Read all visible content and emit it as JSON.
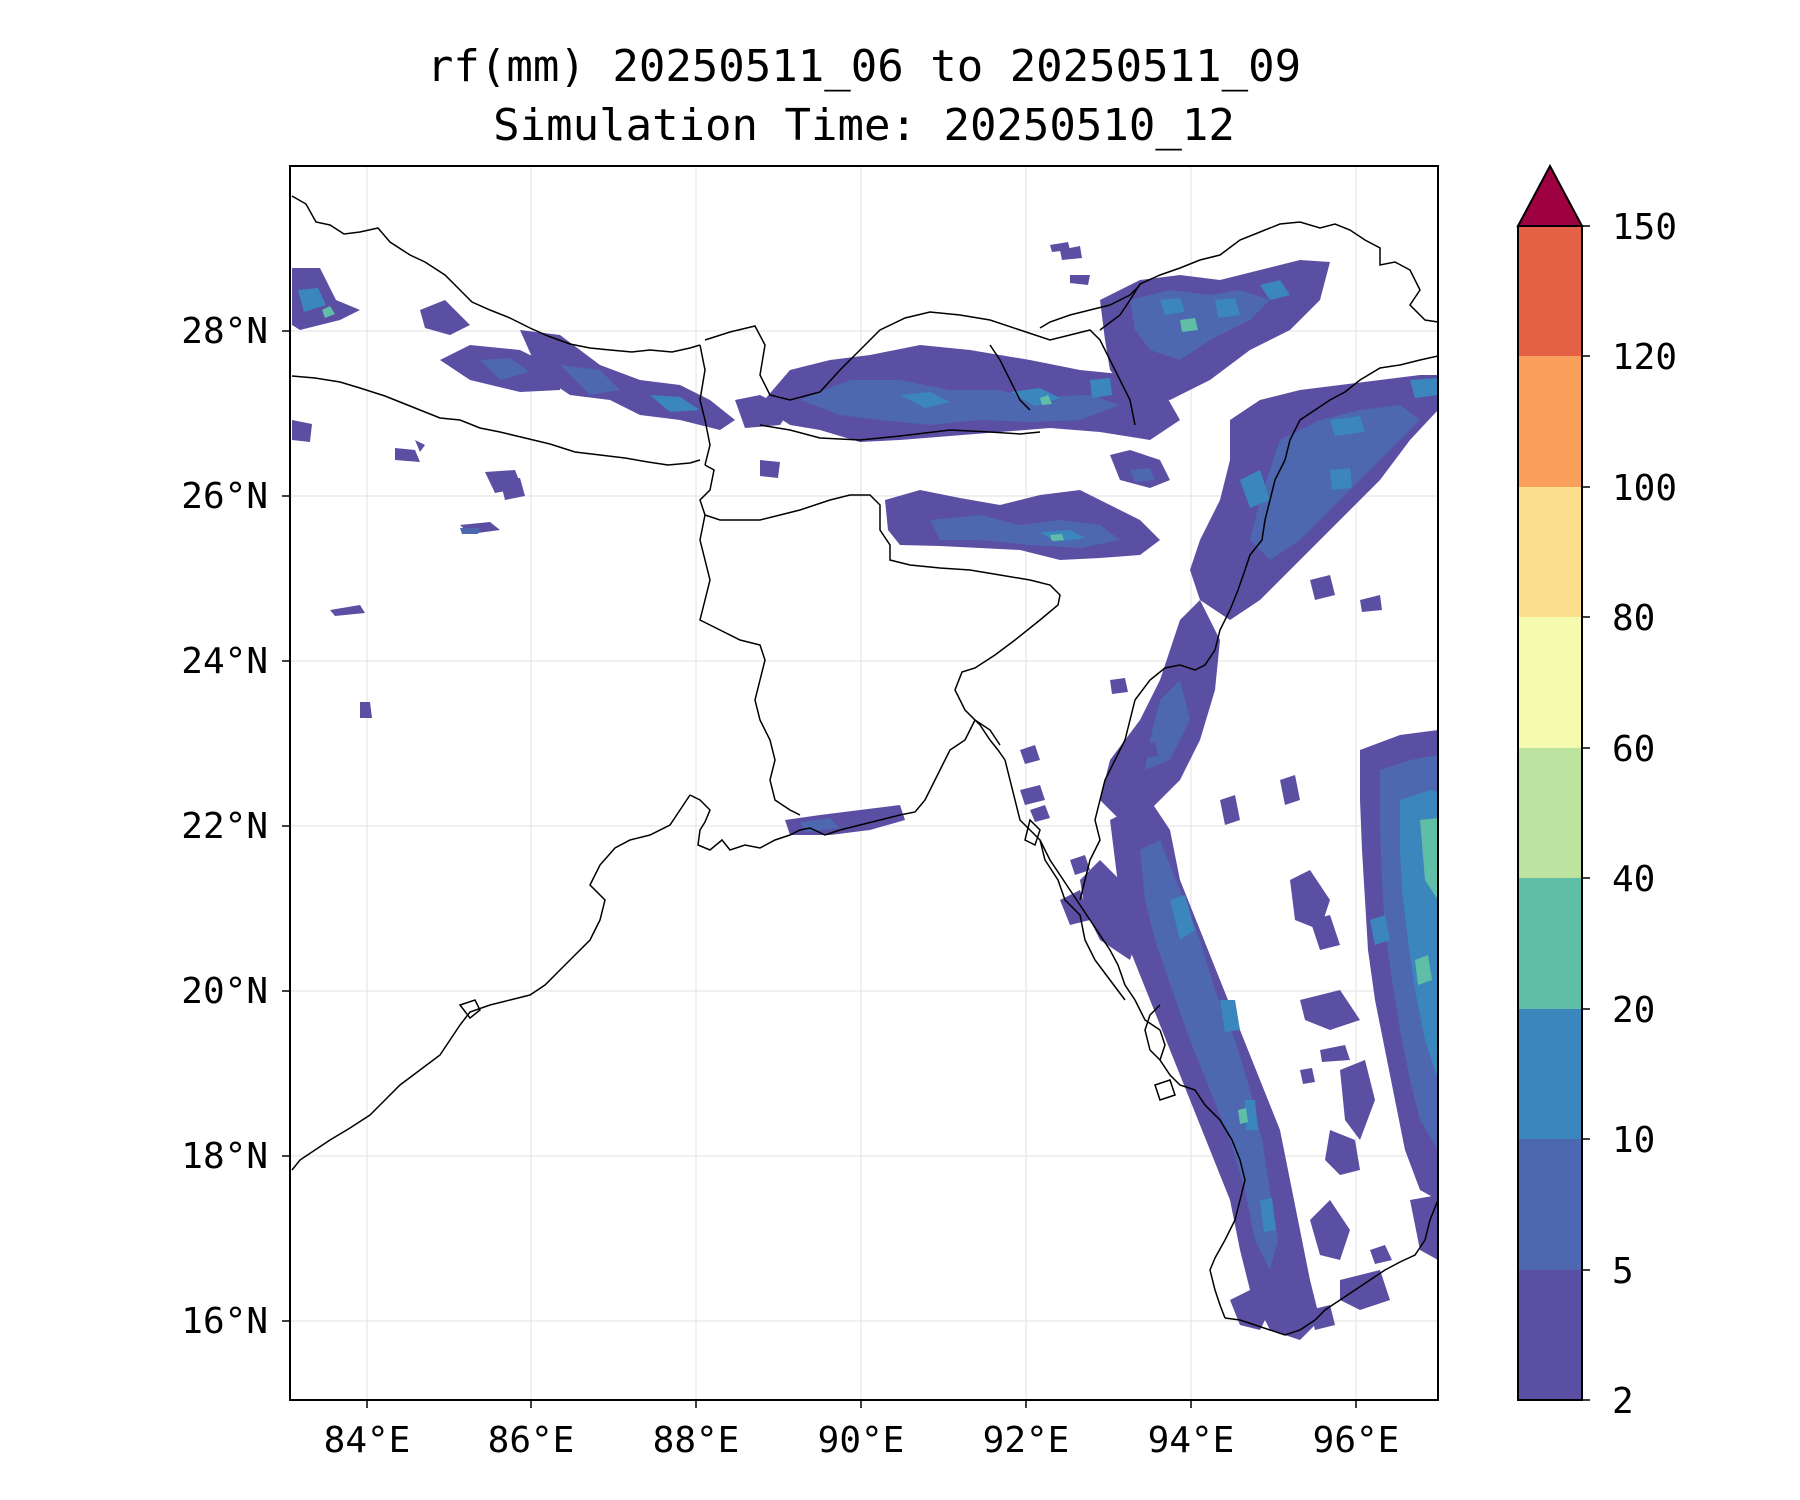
{
  "title": {
    "line1": "rf(mm) 20250511_06 to 20250511_09",
    "line2": "Simulation Time: 20250510_12"
  },
  "map": {
    "lon_range": [
      83.1,
      97.0
    ],
    "lat_range": [
      15.0,
      30.0
    ],
    "lon_ticks": [
      "84°E",
      "86°E",
      "88°E",
      "90°E",
      "92°E",
      "94°E",
      "96°E"
    ],
    "lat_ticks": [
      "28°N",
      "26°N",
      "24°N",
      "22°N",
      "20°N",
      "18°N",
      "16°N"
    ],
    "grid": true,
    "features": [
      "coastline",
      "country borders"
    ]
  },
  "colorbar": {
    "levels": [
      "2",
      "5",
      "10",
      "20",
      "40",
      "60",
      "80",
      "100",
      "120",
      "150"
    ],
    "colors": [
      "#5b4fa3",
      "#4d67b0",
      "#3a86bd",
      "#60bea6",
      "#bce3a0",
      "#f4fbae",
      "#fbdf8c",
      "#f8a05c",
      "#e56146",
      "#d44052"
    ],
    "extend_color": "#9e0142",
    "extend": "max"
  }
}
